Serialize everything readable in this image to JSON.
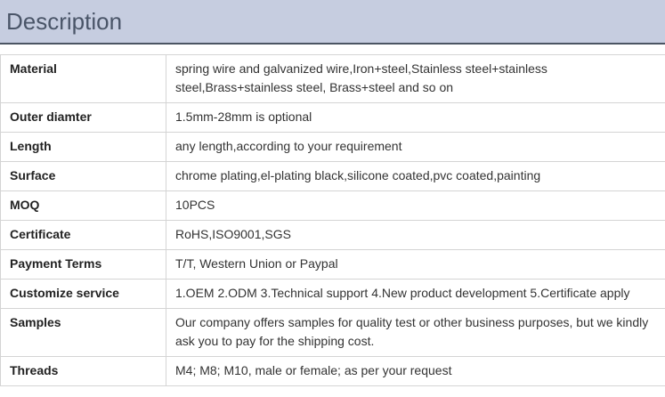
{
  "title": "Description",
  "rows": [
    {
      "label": "Material",
      "value": "spring wire and galvanized wire,Iron+steel,Stainless steel+stainless steel,Brass+stainless steel, Brass+steel and so on"
    },
    {
      "label": "Outer diamter",
      "value": "1.5mm-28mm is optional"
    },
    {
      "label": "Length",
      "value": "any length,according to your requirement"
    },
    {
      "label": "Surface",
      "value": "chrome plating,el-plating black,silicone coated,pvc coated,painting"
    },
    {
      "label": "MOQ",
      "value": "10PCS"
    },
    {
      "label": "Certificate",
      "value": "RoHS,ISO9001,SGS"
    },
    {
      "label": "Payment Terms",
      "value": "T/T, Western Union or Paypal"
    },
    {
      "label": "Customize service",
      "value": "1.OEM 2.ODM 3.Technical support 4.New product development 5.Certificate apply"
    },
    {
      "label": "Samples",
      "value": "Our company offers samples for quality test or other business purposes, but we kindly ask you to pay for the shipping cost."
    },
    {
      "label": "Threads",
      "value": "M4; M8; M10, male or female; as per your request"
    }
  ]
}
